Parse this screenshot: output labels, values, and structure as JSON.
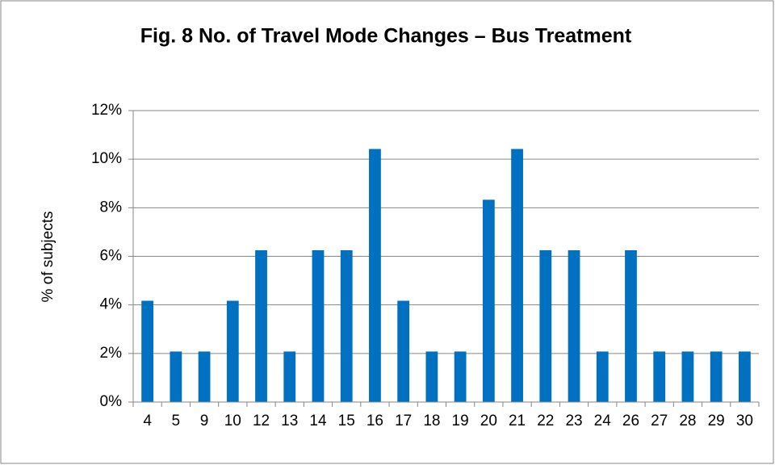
{
  "chart_data": {
    "type": "bar",
    "title": "Fig. 8 No. of Travel Mode Changes – Bus Treatment",
    "y_label": "% of subjects",
    "categories": [
      "4",
      "5",
      "9",
      "10",
      "12",
      "13",
      "14",
      "15",
      "16",
      "17",
      "18",
      "19",
      "20",
      "21",
      "22",
      "23",
      "24",
      "26",
      "27",
      "28",
      "29",
      "30"
    ],
    "values": [
      4.17,
      2.08,
      2.08,
      4.17,
      6.25,
      2.08,
      6.25,
      6.25,
      10.42,
      4.17,
      2.08,
      2.08,
      8.33,
      10.42,
      6.25,
      6.25,
      2.08,
      6.25,
      2.08,
      2.08,
      2.08,
      2.08
    ],
    "color": "#0070c0",
    "ylim": [
      0,
      12
    ],
    "yticks": [
      {
        "value": 0,
        "label": "0%"
      },
      {
        "value": 2,
        "label": "2%"
      },
      {
        "value": 4,
        "label": "4%"
      },
      {
        "value": 6,
        "label": "6%"
      },
      {
        "value": 8,
        "label": "8%"
      },
      {
        "value": 10,
        "label": "10%"
      },
      {
        "value": 12,
        "label": "12%"
      }
    ],
    "grid": true
  }
}
